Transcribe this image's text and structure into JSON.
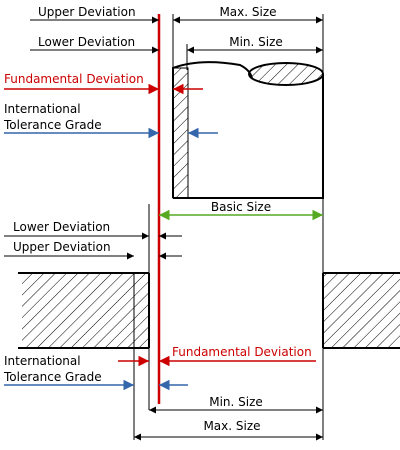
{
  "labels": {
    "upper_deviation_top": "Upper Deviation",
    "lower_deviation_top": "Lower Deviation",
    "fundamental_deviation_top": "Fundamental Deviation",
    "itg_top_line1": "International",
    "itg_top_line2": "Tolerance Grade",
    "max_size_top": "Max. Size",
    "min_size_top": "Min. Size",
    "basic_size": "Basic Size",
    "lower_deviation_bottom": "Lower Deviation",
    "upper_deviation_bottom": "Upper Deviation",
    "fundamental_deviation_bottom": "Fundamental Deviation",
    "itg_bottom_line1": "International",
    "itg_bottom_line2": "Tolerance Grade",
    "min_size_bottom": "Min. Size",
    "max_size_bottom": "Max. Size"
  },
  "colors": {
    "zero_line": "#cc0000",
    "fundamental": "#cc0000",
    "tolerance_grade": "#3366aa",
    "basic_size": "#55aa22",
    "outline": "#000000"
  }
}
